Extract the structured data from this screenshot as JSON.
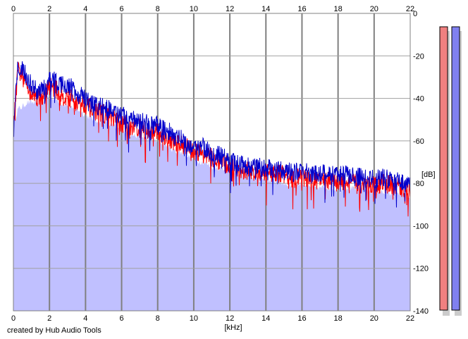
{
  "footer": {
    "credit": "created by Hub Audio Tools"
  },
  "chart_data": {
    "type": "area",
    "title": "",
    "xlabel": "[kHz]",
    "ylabel": "[dB]",
    "xlim": [
      0,
      22
    ],
    "ylim": [
      -140,
      0
    ],
    "x_ticks": [
      0,
      2,
      4,
      6,
      8,
      10,
      12,
      14,
      16,
      18,
      20,
      22
    ],
    "y_ticks": [
      0,
      -20,
      -40,
      -60,
      -80,
      -100,
      -120,
      -140
    ],
    "grid": true,
    "x_tick_labels_position": "top-and-bottom",
    "y_tick_labels_position": "right",
    "x": [
      0.0,
      0.25,
      0.5,
      0.75,
      1.0,
      1.25,
      1.5,
      1.75,
      2.0,
      2.25,
      2.5,
      2.75,
      3.0,
      3.25,
      3.5,
      3.75,
      4.0,
      4.5,
      5.0,
      5.5,
      6.0,
      6.5,
      7.0,
      7.5,
      8.0,
      8.5,
      9.0,
      9.5,
      10.0,
      10.5,
      11.0,
      11.5,
      12.0,
      12.5,
      13.0,
      13.5,
      14.0,
      14.5,
      15.0,
      15.5,
      16.0,
      16.5,
      17.0,
      17.5,
      18.0,
      18.5,
      19.0,
      19.5,
      20.0,
      20.5,
      21.0,
      21.5,
      22.0
    ],
    "fill_color": "#c0c0ff",
    "series": [
      {
        "color": "#0000cc",
        "values": [
          -52,
          -24,
          -26,
          -30,
          -34,
          -36,
          -37,
          -35,
          -31,
          -31,
          -32,
          -34,
          -34,
          -35,
          -37,
          -38,
          -41,
          -43,
          -44,
          -46,
          -48,
          -50,
          -51,
          -52,
          -53,
          -55,
          -58,
          -60,
          -63,
          -63,
          -66,
          -67,
          -69,
          -71,
          -72,
          -72,
          -73,
          -73,
          -74,
          -75,
          -74,
          -76,
          -75,
          -76,
          -75,
          -76,
          -77,
          -77,
          -78,
          -77,
          -79,
          -79,
          -81
        ],
        "floor_values": [
          -52,
          -45,
          -44,
          -42,
          -42,
          -42,
          -42,
          -40,
          -39,
          -40,
          -41,
          -43,
          -43,
          -45,
          -45,
          -46,
          -48,
          -50,
          -51,
          -53,
          -55,
          -57,
          -58,
          -59,
          -60,
          -62,
          -65,
          -66,
          -69,
          -70,
          -72,
          -73,
          -74,
          -76,
          -77,
          -78,
          -78,
          -79,
          -80,
          -81,
          -80,
          -82,
          -82,
          -82,
          -83,
          -82,
          -83,
          -83,
          -84,
          -84,
          -85,
          -85,
          -87
        ]
      },
      {
        "color": "#ff0000",
        "values": [
          -54,
          -27,
          -29,
          -33,
          -37,
          -39,
          -40,
          -38,
          -34,
          -35,
          -37,
          -39,
          -40,
          -40,
          -42,
          -42,
          -43,
          -46,
          -47,
          -49,
          -52,
          -53,
          -54,
          -56,
          -56,
          -58,
          -61,
          -62,
          -65,
          -66,
          -68,
          -70,
          -72,
          -74,
          -74,
          -75,
          -75,
          -75,
          -76,
          -78,
          -77,
          -79,
          -78,
          -79,
          -80,
          -79,
          -80,
          -80,
          -81,
          -80,
          -81,
          -82,
          -84
        ]
      }
    ]
  }
}
